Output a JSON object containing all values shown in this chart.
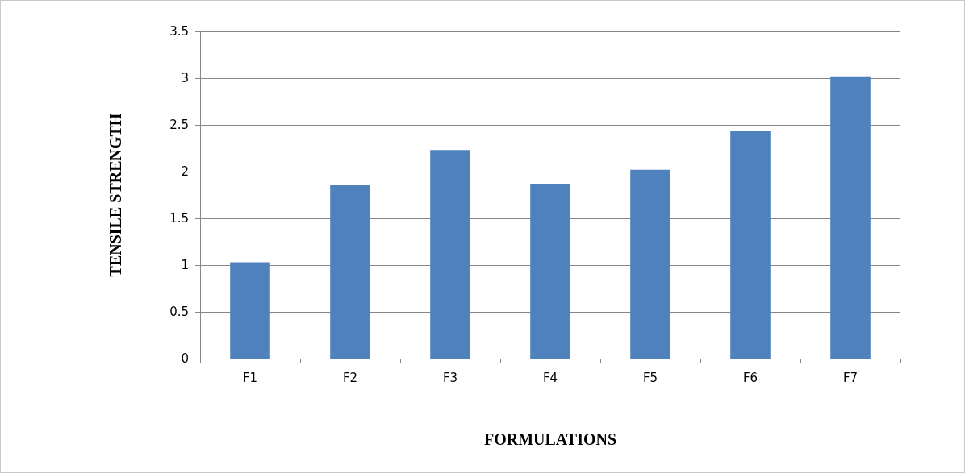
{
  "chart_data": {
    "type": "bar",
    "xlabel": "FORMULATIONS",
    "ylabel": "TENSILE STRENGTH",
    "categories": [
      "F1",
      "F2",
      "F3",
      "F4",
      "F5",
      "F6",
      "F7"
    ],
    "values": [
      1.03,
      1.86,
      2.23,
      1.87,
      2.02,
      2.43,
      3.02
    ],
    "color": "#4f81bd",
    "ylim": [
      0,
      3.5
    ],
    "yticks": [
      0,
      0.5,
      1,
      1.5,
      2,
      2.5,
      3,
      3.5
    ],
    "grid": "y"
  }
}
